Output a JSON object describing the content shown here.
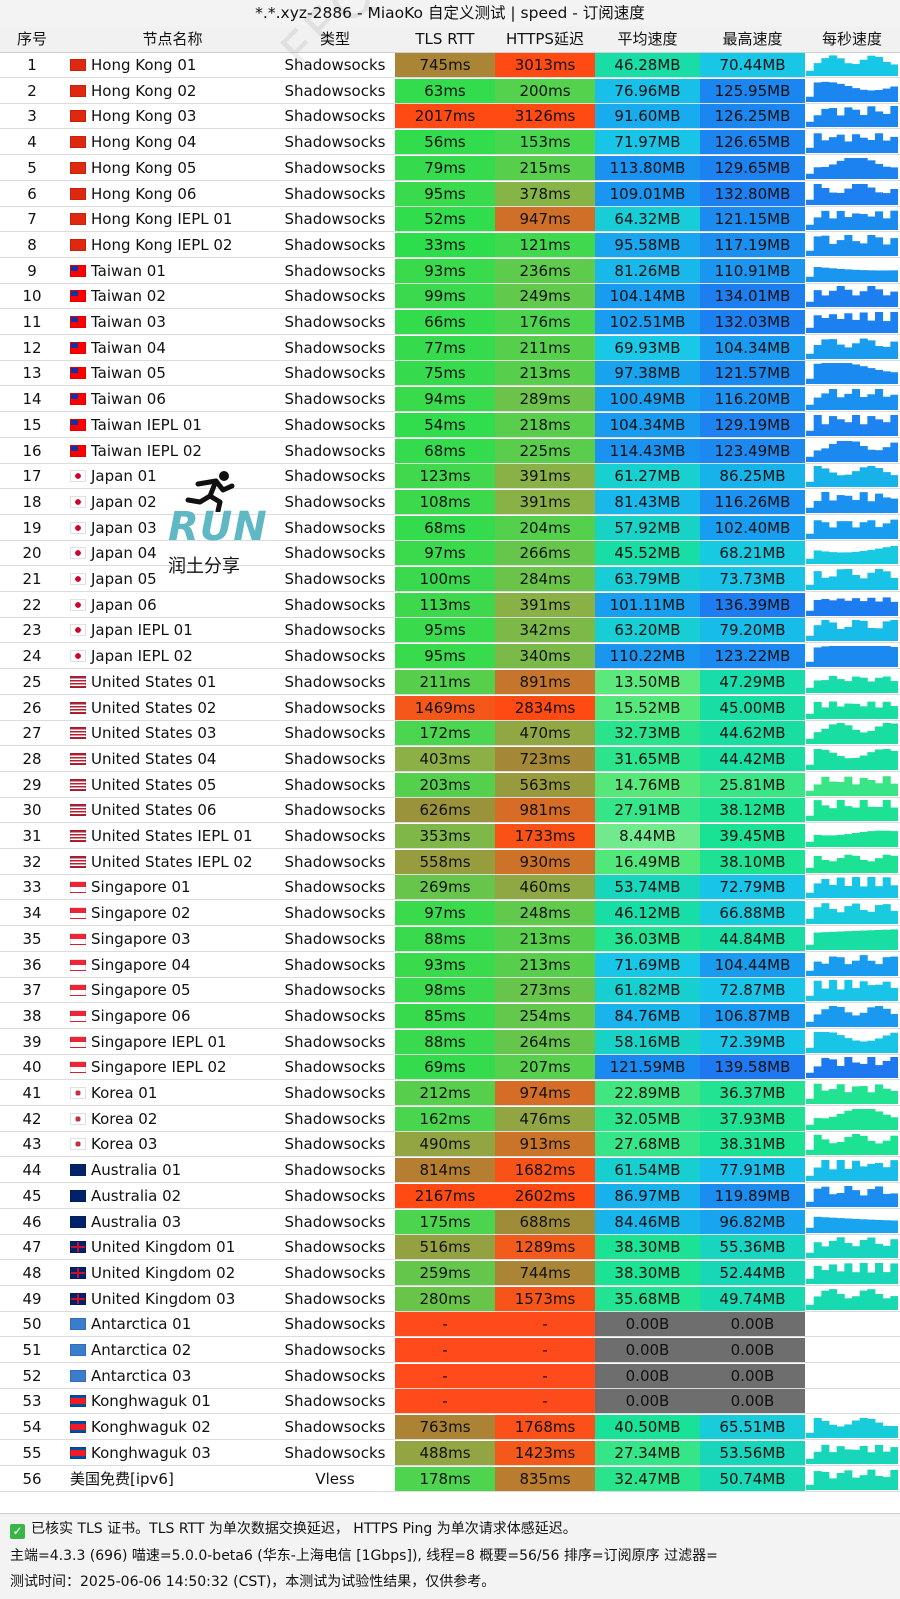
{
  "window": {
    "title": "*.*.xyz-2886 - MiaoKo 自定义测试 | speed - 订阅速度"
  },
  "watermark": "FFQ.LA Test Center",
  "logo": {
    "run": "RUN",
    "subtitle": "润土分享"
  },
  "headers": [
    "序号",
    "节点名称",
    "类型",
    "TLS RTT",
    "HTTPS延迟",
    "平均速度",
    "最高速度",
    "每秒速度"
  ],
  "rows": [
    {
      "idx": "1",
      "flag": "hk",
      "name": "Hong Kong 01",
      "type": "Shadowsocks",
      "tls": "745ms",
      "https": "3013ms",
      "avg": "46.28MB",
      "max": "70.44MB"
    },
    {
      "idx": "2",
      "flag": "hk",
      "name": "Hong Kong 02",
      "type": "Shadowsocks",
      "tls": "63ms",
      "https": "200ms",
      "avg": "76.96MB",
      "max": "125.95MB"
    },
    {
      "idx": "3",
      "flag": "hk",
      "name": "Hong Kong 03",
      "type": "Shadowsocks",
      "tls": "2017ms",
      "https": "3126ms",
      "avg": "91.60MB",
      "max": "126.25MB"
    },
    {
      "idx": "4",
      "flag": "hk",
      "name": "Hong Kong 04",
      "type": "Shadowsocks",
      "tls": "56ms",
      "https": "153ms",
      "avg": "71.97MB",
      "max": "126.65MB"
    },
    {
      "idx": "5",
      "flag": "hk",
      "name": "Hong Kong 05",
      "type": "Shadowsocks",
      "tls": "79ms",
      "https": "215ms",
      "avg": "113.80MB",
      "max": "129.65MB"
    },
    {
      "idx": "6",
      "flag": "hk",
      "name": "Hong Kong 06",
      "type": "Shadowsocks",
      "tls": "95ms",
      "https": "378ms",
      "avg": "109.01MB",
      "max": "132.80MB"
    },
    {
      "idx": "7",
      "flag": "hk",
      "name": "Hong Kong IEPL 01",
      "type": "Shadowsocks",
      "tls": "52ms",
      "https": "947ms",
      "avg": "64.32MB",
      "max": "121.15MB"
    },
    {
      "idx": "8",
      "flag": "hk",
      "name": "Hong Kong IEPL 02",
      "type": "Shadowsocks",
      "tls": "33ms",
      "https": "121ms",
      "avg": "95.58MB",
      "max": "117.19MB"
    },
    {
      "idx": "9",
      "flag": "tw",
      "name": "Taiwan 01",
      "type": "Shadowsocks",
      "tls": "93ms",
      "https": "236ms",
      "avg": "81.26MB",
      "max": "110.91MB"
    },
    {
      "idx": "10",
      "flag": "tw",
      "name": "Taiwan 02",
      "type": "Shadowsocks",
      "tls": "99ms",
      "https": "249ms",
      "avg": "104.14MB",
      "max": "134.01MB"
    },
    {
      "idx": "11",
      "flag": "tw",
      "name": "Taiwan 03",
      "type": "Shadowsocks",
      "tls": "66ms",
      "https": "176ms",
      "avg": "102.51MB",
      "max": "132.03MB"
    },
    {
      "idx": "12",
      "flag": "tw",
      "name": "Taiwan 04",
      "type": "Shadowsocks",
      "tls": "77ms",
      "https": "211ms",
      "avg": "69.93MB",
      "max": "104.34MB"
    },
    {
      "idx": "13",
      "flag": "tw",
      "name": "Taiwan 05",
      "type": "Shadowsocks",
      "tls": "75ms",
      "https": "213ms",
      "avg": "97.38MB",
      "max": "121.57MB"
    },
    {
      "idx": "14",
      "flag": "tw",
      "name": "Taiwan 06",
      "type": "Shadowsocks",
      "tls": "94ms",
      "https": "289ms",
      "avg": "100.49MB",
      "max": "116.20MB"
    },
    {
      "idx": "15",
      "flag": "tw",
      "name": "Taiwan IEPL 01",
      "type": "Shadowsocks",
      "tls": "54ms",
      "https": "218ms",
      "avg": "104.34MB",
      "max": "129.19MB"
    },
    {
      "idx": "16",
      "flag": "tw",
      "name": "Taiwan IEPL 02",
      "type": "Shadowsocks",
      "tls": "68ms",
      "https": "225ms",
      "avg": "114.43MB",
      "max": "123.49MB"
    },
    {
      "idx": "17",
      "flag": "jp",
      "name": "Japan 01",
      "type": "Shadowsocks",
      "tls": "123ms",
      "https": "391ms",
      "avg": "61.27MB",
      "max": "86.25MB"
    },
    {
      "idx": "18",
      "flag": "jp",
      "name": "Japan 02",
      "type": "Shadowsocks",
      "tls": "108ms",
      "https": "391ms",
      "avg": "81.43MB",
      "max": "116.26MB"
    },
    {
      "idx": "19",
      "flag": "jp",
      "name": "Japan 03",
      "type": "Shadowsocks",
      "tls": "68ms",
      "https": "204ms",
      "avg": "57.92MB",
      "max": "102.40MB"
    },
    {
      "idx": "20",
      "flag": "jp",
      "name": "Japan 04",
      "type": "Shadowsocks",
      "tls": "97ms",
      "https": "266ms",
      "avg": "45.52MB",
      "max": "68.21MB"
    },
    {
      "idx": "21",
      "flag": "jp",
      "name": "Japan 05",
      "type": "Shadowsocks",
      "tls": "100ms",
      "https": "284ms",
      "avg": "63.79MB",
      "max": "73.73MB"
    },
    {
      "idx": "22",
      "flag": "jp",
      "name": "Japan 06",
      "type": "Shadowsocks",
      "tls": "113ms",
      "https": "391ms",
      "avg": "101.11MB",
      "max": "136.39MB"
    },
    {
      "idx": "23",
      "flag": "jp",
      "name": "Japan IEPL 01",
      "type": "Shadowsocks",
      "tls": "95ms",
      "https": "342ms",
      "avg": "63.20MB",
      "max": "79.20MB"
    },
    {
      "idx": "24",
      "flag": "jp",
      "name": "Japan IEPL 02",
      "type": "Shadowsocks",
      "tls": "95ms",
      "https": "340ms",
      "avg": "110.22MB",
      "max": "123.22MB"
    },
    {
      "idx": "25",
      "flag": "us",
      "name": "United States 01",
      "type": "Shadowsocks",
      "tls": "211ms",
      "https": "891ms",
      "avg": "13.50MB",
      "max": "47.29MB"
    },
    {
      "idx": "26",
      "flag": "us",
      "name": "United States 02",
      "type": "Shadowsocks",
      "tls": "1469ms",
      "https": "2834ms",
      "avg": "15.52MB",
      "max": "45.00MB"
    },
    {
      "idx": "27",
      "flag": "us",
      "name": "United States 03",
      "type": "Shadowsocks",
      "tls": "172ms",
      "https": "470ms",
      "avg": "32.73MB",
      "max": "44.62MB"
    },
    {
      "idx": "28",
      "flag": "us",
      "name": "United States 04",
      "type": "Shadowsocks",
      "tls": "403ms",
      "https": "723ms",
      "avg": "31.65MB",
      "max": "44.42MB"
    },
    {
      "idx": "29",
      "flag": "us",
      "name": "United States 05",
      "type": "Shadowsocks",
      "tls": "203ms",
      "https": "563ms",
      "avg": "14.76MB",
      "max": "25.81MB"
    },
    {
      "idx": "30",
      "flag": "us",
      "name": "United States 06",
      "type": "Shadowsocks",
      "tls": "626ms",
      "https": "981ms",
      "avg": "27.91MB",
      "max": "38.12MB"
    },
    {
      "idx": "31",
      "flag": "us",
      "name": "United States IEPL 01",
      "type": "Shadowsocks",
      "tls": "353ms",
      "https": "1733ms",
      "avg": "8.44MB",
      "max": "39.45MB"
    },
    {
      "idx": "32",
      "flag": "us",
      "name": "United States IEPL 02",
      "type": "Shadowsocks",
      "tls": "558ms",
      "https": "930ms",
      "avg": "16.49MB",
      "max": "38.10MB"
    },
    {
      "idx": "33",
      "flag": "sg",
      "name": "Singapore 01",
      "type": "Shadowsocks",
      "tls": "269ms",
      "https": "460ms",
      "avg": "53.74MB",
      "max": "72.79MB"
    },
    {
      "idx": "34",
      "flag": "sg",
      "name": "Singapore 02",
      "type": "Shadowsocks",
      "tls": "97ms",
      "https": "248ms",
      "avg": "46.12MB",
      "max": "66.88MB"
    },
    {
      "idx": "35",
      "flag": "sg",
      "name": "Singapore 03",
      "type": "Shadowsocks",
      "tls": "88ms",
      "https": "213ms",
      "avg": "36.03MB",
      "max": "44.84MB"
    },
    {
      "idx": "36",
      "flag": "sg",
      "name": "Singapore 04",
      "type": "Shadowsocks",
      "tls": "93ms",
      "https": "213ms",
      "avg": "71.69MB",
      "max": "104.44MB"
    },
    {
      "idx": "37",
      "flag": "sg",
      "name": "Singapore 05",
      "type": "Shadowsocks",
      "tls": "98ms",
      "https": "273ms",
      "avg": "61.82MB",
      "max": "72.87MB"
    },
    {
      "idx": "38",
      "flag": "sg",
      "name": "Singapore 06",
      "type": "Shadowsocks",
      "tls": "85ms",
      "https": "254ms",
      "avg": "84.76MB",
      "max": "106.87MB"
    },
    {
      "idx": "39",
      "flag": "sg",
      "name": "Singapore IEPL 01",
      "type": "Shadowsocks",
      "tls": "88ms",
      "https": "264ms",
      "avg": "58.16MB",
      "max": "72.39MB"
    },
    {
      "idx": "40",
      "flag": "sg",
      "name": "Singapore IEPL 02",
      "type": "Shadowsocks",
      "tls": "69ms",
      "https": "207ms",
      "avg": "121.59MB",
      "max": "139.58MB"
    },
    {
      "idx": "41",
      "flag": "kr",
      "name": "Korea 01",
      "type": "Shadowsocks",
      "tls": "212ms",
      "https": "974ms",
      "avg": "22.89MB",
      "max": "36.37MB"
    },
    {
      "idx": "42",
      "flag": "kr",
      "name": "Korea 02",
      "type": "Shadowsocks",
      "tls": "162ms",
      "https": "476ms",
      "avg": "32.05MB",
      "max": "37.93MB"
    },
    {
      "idx": "43",
      "flag": "kr",
      "name": "Korea 03",
      "type": "Shadowsocks",
      "tls": "490ms",
      "https": "913ms",
      "avg": "27.68MB",
      "max": "38.31MB"
    },
    {
      "idx": "44",
      "flag": "au",
      "name": "Australia 01",
      "type": "Shadowsocks",
      "tls": "814ms",
      "https": "1682ms",
      "avg": "61.54MB",
      "max": "77.91MB"
    },
    {
      "idx": "45",
      "flag": "au",
      "name": "Australia 02",
      "type": "Shadowsocks",
      "tls": "2167ms",
      "https": "2602ms",
      "avg": "86.97MB",
      "max": "119.89MB"
    },
    {
      "idx": "46",
      "flag": "au",
      "name": "Australia 03",
      "type": "Shadowsocks",
      "tls": "175ms",
      "https": "688ms",
      "avg": "84.46MB",
      "max": "96.82MB"
    },
    {
      "idx": "47",
      "flag": "gb",
      "name": "United Kingdom 01",
      "type": "Shadowsocks",
      "tls": "516ms",
      "https": "1289ms",
      "avg": "38.30MB",
      "max": "55.36MB"
    },
    {
      "idx": "48",
      "flag": "gb",
      "name": "United Kingdom 02",
      "type": "Shadowsocks",
      "tls": "259ms",
      "https": "744ms",
      "avg": "38.30MB",
      "max": "52.44MB"
    },
    {
      "idx": "49",
      "flag": "gb",
      "name": "United Kingdom 03",
      "type": "Shadowsocks",
      "tls": "280ms",
      "https": "1573ms",
      "avg": "35.68MB",
      "max": "49.74MB"
    },
    {
      "idx": "50",
      "flag": "aq",
      "name": "Antarctica 01",
      "type": "Shadowsocks",
      "tls": "-",
      "https": "-",
      "avg": "0.00B",
      "max": "0.00B"
    },
    {
      "idx": "51",
      "flag": "aq",
      "name": "Antarctica 02",
      "type": "Shadowsocks",
      "tls": "-",
      "https": "-",
      "avg": "0.00B",
      "max": "0.00B"
    },
    {
      "idx": "52",
      "flag": "aq",
      "name": "Antarctica 03",
      "type": "Shadowsocks",
      "tls": "-",
      "https": "-",
      "avg": "0.00B",
      "max": "0.00B"
    },
    {
      "idx": "53",
      "flag": "kp",
      "name": "Konghwaguk 01",
      "type": "Shadowsocks",
      "tls": "-",
      "https": "-",
      "avg": "0.00B",
      "max": "0.00B"
    },
    {
      "idx": "54",
      "flag": "kp",
      "name": "Konghwaguk 02",
      "type": "Shadowsocks",
      "tls": "763ms",
      "https": "1768ms",
      "avg": "40.50MB",
      "max": "65.51MB"
    },
    {
      "idx": "55",
      "flag": "kp",
      "name": "Konghwaguk 03",
      "type": "Shadowsocks",
      "tls": "488ms",
      "https": "1423ms",
      "avg": "27.34MB",
      "max": "53.56MB"
    },
    {
      "idx": "56",
      "flag": "",
      "name": "美国免费[ipv6]",
      "type": "Vless",
      "tls": "178ms",
      "https": "835ms",
      "avg": "32.47MB",
      "max": "50.74MB"
    }
  ],
  "footer": {
    "line1": "已核实 TLS 证书。TLS RTT 为单次数据交换延迟， HTTPS Ping 为单次请求体感延迟。",
    "line2": "主端=4.3.3 (696) 喵速=5.0.0-beta6 (华东-上海电信 [1Gbps]), 线程=8 概要=56/56 排序=订阅原序 过滤器=",
    "line3": "测试时间：2025-06-06 14:50:32 (CST)，本测试为试验性结果，仅供参考。"
  }
}
